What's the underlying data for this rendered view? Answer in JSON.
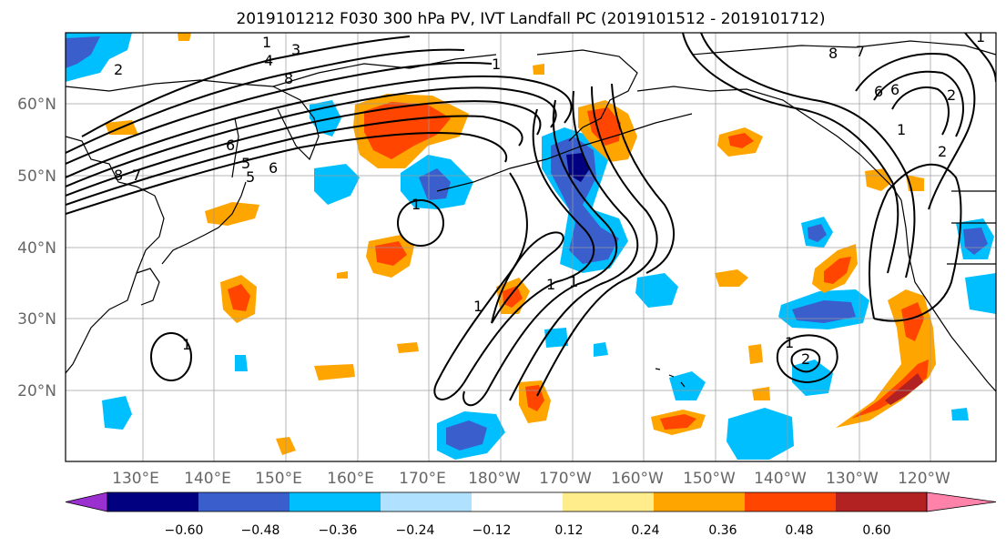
{
  "title": "2019101212 F030 300 hPa PV, IVT Landfall PC (2019101512 - 2019101712)",
  "latitude_labels": [
    "60°N",
    "50°N",
    "40°N",
    "30°N",
    "20°N"
  ],
  "longitude_labels": [
    "130°E",
    "140°E",
    "150°E",
    "160°E",
    "170°E",
    "180°W",
    "170°W",
    "160°W",
    "150°W",
    "140°W",
    "130°W",
    "120°W"
  ],
  "colorbar": {
    "labels": [
      "−0.60",
      "−0.48",
      "−0.36",
      "−0.24",
      "−0.12",
      "0.12",
      "0.24",
      "0.36",
      "0.48",
      "0.60"
    ],
    "colors": [
      "#9b30d0",
      "#000080",
      "#3a5fcd",
      "#00bfff",
      "#b0e2ff",
      "#ffffff",
      "#ffec8b",
      "#ffa500",
      "#ff4500",
      "#b22222",
      "#ff82ab"
    ]
  },
  "contour_labels": [
    "1",
    "1",
    "2",
    "3",
    "4",
    "8",
    "7",
    "8",
    "6",
    "5",
    "6",
    "1",
    "1",
    "1",
    "1",
    "1",
    "1",
    "6",
    "6",
    "2",
    "2",
    "1",
    "1",
    "8",
    "7",
    "2",
    "5"
  ],
  "colors": {
    "negative_shade": "#00bfff",
    "positive_shade": "#ffa500",
    "strong_positive": "#ff4500",
    "strong_negative": "#3a5fcd"
  }
}
